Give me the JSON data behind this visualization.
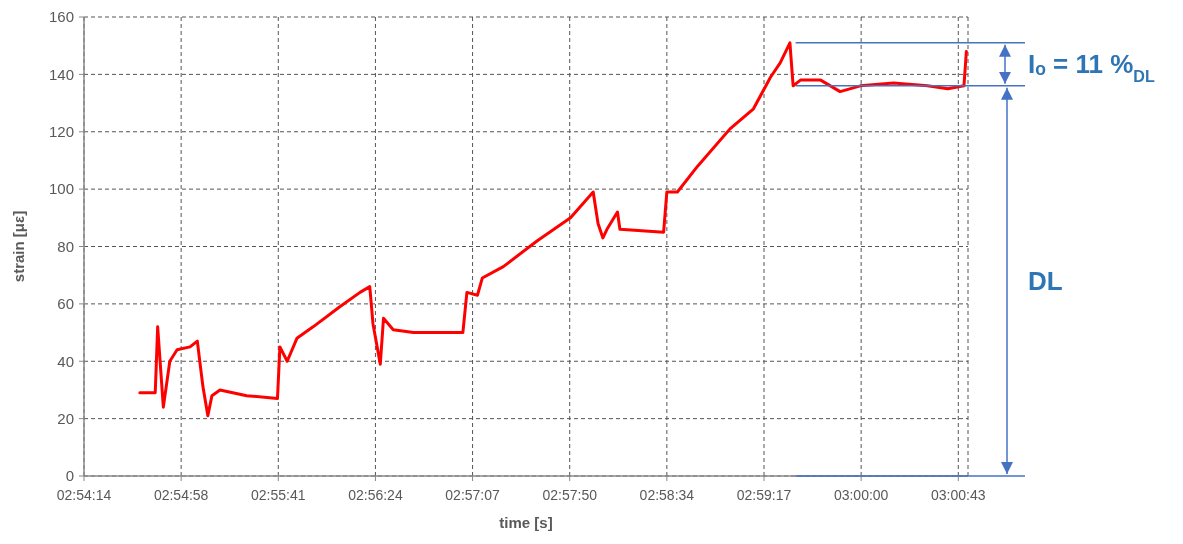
{
  "chart_data": {
    "type": "line",
    "xlabel": "time [s]",
    "ylabel": "strain [με]",
    "xlim": [
      2.904,
      3.0132
    ],
    "ylim": [
      0,
      160
    ],
    "xticks": [
      {
        "value": 2.904,
        "label": "02:54:14"
      },
      {
        "value": 2.916,
        "label": "02:54:58"
      },
      {
        "value": 2.928,
        "label": "02:55:41"
      },
      {
        "value": 2.94,
        "label": "02:56:24"
      },
      {
        "value": 2.952,
        "label": "02:57:07"
      },
      {
        "value": 2.964,
        "label": "02:57:50"
      },
      {
        "value": 2.976,
        "label": "02:58:34"
      },
      {
        "value": 2.988,
        "label": "02:59:17"
      },
      {
        "value": 3.0,
        "label": "03:00:00"
      },
      {
        "value": 3.012,
        "label": "03:00:43"
      }
    ],
    "yticks": [
      0,
      20,
      40,
      60,
      80,
      100,
      120,
      140,
      160
    ],
    "grid": true,
    "marker": "none",
    "line_style": "solid",
    "series": [
      {
        "color": "#ff0000",
        "x": [
          2.9109,
          2.9128,
          2.9131,
          2.9138,
          2.9146,
          2.9155,
          2.9171,
          2.918,
          2.9183,
          2.9187,
          2.9193,
          2.9198,
          2.9208,
          2.9241,
          2.9279,
          2.9282,
          2.9291,
          2.9303,
          2.9323,
          2.9356,
          2.9381,
          2.9393,
          2.9397,
          2.9406,
          2.941,
          2.9422,
          2.9447,
          2.9508,
          2.9513,
          2.9526,
          2.9532,
          2.9558,
          2.96,
          2.9641,
          2.9669,
          2.9675,
          2.9681,
          2.9686,
          2.9699,
          2.9702,
          2.9756,
          2.976,
          2.9773,
          2.9798,
          2.9838,
          2.9867,
          2.9888,
          2.99,
          2.9912,
          2.9916,
          2.9925,
          2.995,
          2.9974,
          2.9999,
          3.004,
          3.0082,
          3.0107,
          3.0127,
          3.013
        ],
        "values": [
          29,
          29,
          52,
          24,
          40,
          44,
          45,
          47,
          40,
          31,
          21,
          28,
          30,
          28,
          27,
          45,
          40,
          48,
          52,
          59,
          64,
          66,
          53,
          39,
          55,
          51,
          50,
          50,
          64,
          63,
          69,
          73,
          82,
          90,
          99,
          88,
          83,
          86,
          92,
          86,
          85,
          99,
          99,
          108,
          121,
          128,
          139,
          144,
          151,
          136,
          138,
          138,
          134,
          136,
          137,
          136,
          135,
          136,
          148
        ]
      }
    ],
    "ref_lines": [
      {
        "axis": "y",
        "value": 151,
        "color": "#4472c4"
      },
      {
        "axis": "y",
        "value": 136,
        "color": "#4472c4"
      },
      {
        "axis": "y",
        "value": 0,
        "color": "#4472c4"
      }
    ],
    "annotations": [
      "Iₒ = 11 %$_{DL}$",
      "DL"
    ]
  }
}
